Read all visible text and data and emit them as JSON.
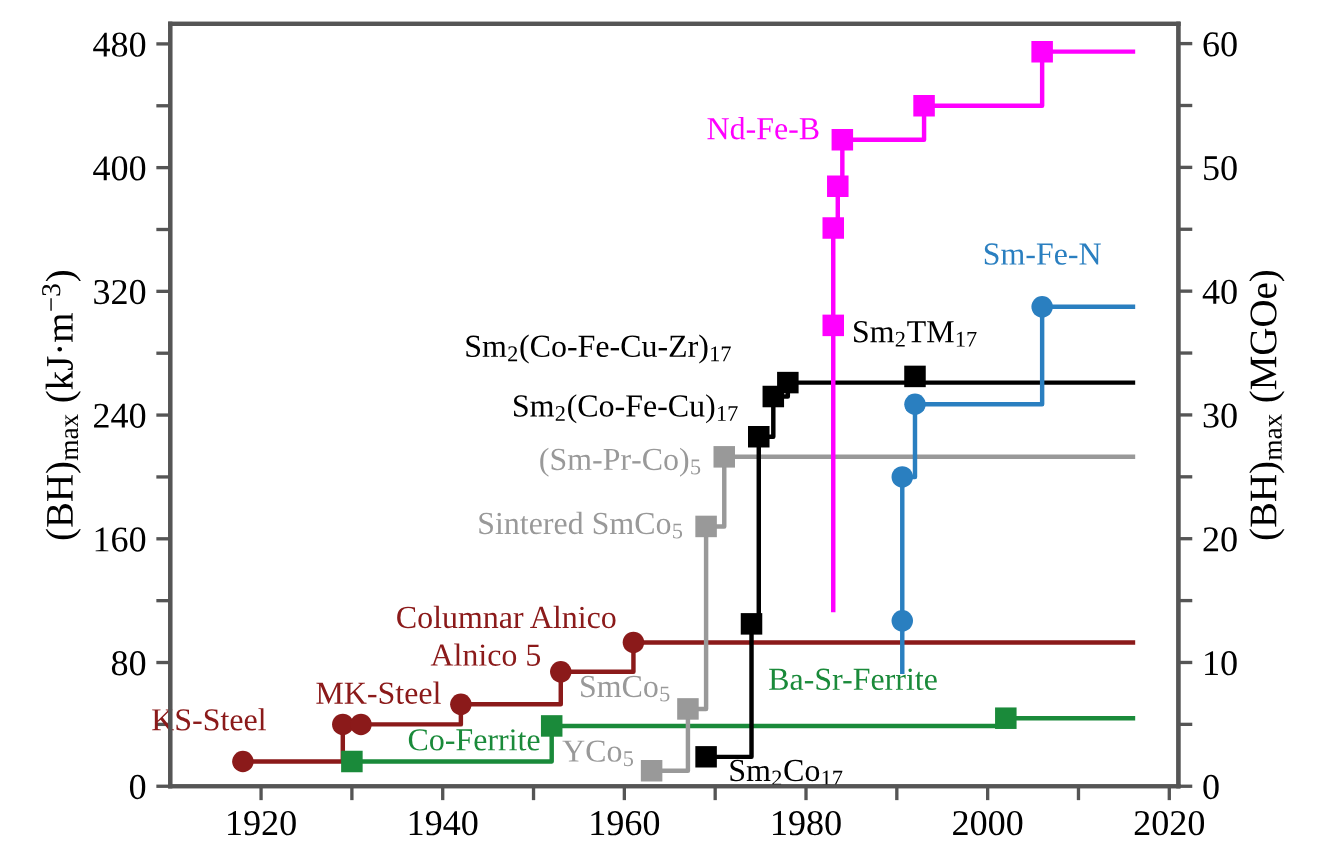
{
  "chart_data": {
    "type": "step",
    "xlim": [
      1910,
      2021
    ],
    "xticks": [
      1920,
      {
        "value": 1930,
        "label": null
      },
      1940,
      {
        "value": 1950,
        "label": null
      },
      1960,
      {
        "value": 1970,
        "label": null
      },
      1980,
      {
        "value": 1990,
        "label": null
      },
      2000,
      {
        "value": 2010,
        "label": null
      },
      2020
    ],
    "ylim": [
      0,
      493
    ],
    "yticks": [
      0,
      {
        "value": 40,
        "label": null
      },
      80,
      {
        "value": 120,
        "label": null
      },
      160,
      {
        "value": 200,
        "label": null
      },
      240,
      {
        "value": 280,
        "label": null
      },
      320,
      {
        "value": 360,
        "label": null
      },
      400,
      {
        "value": 440,
        "label": null
      },
      480
    ],
    "y2lim": [
      0,
      61.6
    ],
    "y2ticks": [
      0,
      {
        "value": 5,
        "label": null
      },
      10,
      {
        "value": 15,
        "label": null
      },
      20,
      {
        "value": 25,
        "label": null
      },
      30,
      {
        "value": 35,
        "label": null
      },
      40,
      {
        "value": 45,
        "label": null
      },
      50,
      {
        "value": 55,
        "label": null
      },
      60
    ],
    "ylabel": "(BH)$_{max}$ (kJ·m$^{−3}$)",
    "y2label": "(BH)$_{max}$ (MGOe)",
    "grid": false,
    "legend": false,
    "line_style": "solid",
    "series": [
      {
        "marker": "none",
        "color": "#8b1a1a",
        "x": [
          1918,
          1929,
          1931,
          1942,
          1953,
          1961,
          2016
        ],
        "values": [
          16,
          40,
          40,
          53,
          74,
          93,
          93
        ]
      },
      {
        "marker": "none",
        "color": "#1a8a3a",
        "x": [
          1930,
          1952,
          2002,
          2016
        ],
        "values": [
          16,
          39,
          44,
          44
        ]
      },
      {
        "marker": "none",
        "color": "#999999",
        "x": [
          1963,
          1967,
          1969,
          1971,
          2016
        ],
        "values": [
          10,
          50,
          168,
          213,
          213
        ]
      },
      {
        "marker": "none",
        "color": "#000000",
        "x": [
          1969,
          1974,
          1974.8,
          1976.4,
          1978,
          2016
        ],
        "values": [
          19,
          105,
          226,
          252,
          261,
          261
        ]
      },
      {
        "marker": "none",
        "color": "#ff00ff",
        "x": [
          1983,
          1983,
          1983,
          1983.5,
          1984,
          1993,
          2006,
          2016
        ],
        "values": [
          114,
          298,
          361,
          388,
          418,
          440,
          475,
          475
        ]
      },
      {
        "marker": "none",
        "color": "#2a7fc0",
        "x": [
          1990.6,
          1990.6,
          1990.6,
          1992,
          2006,
          2016
        ],
        "values": [
          74,
          107,
          200,
          247,
          310,
          310
        ]
      },
      {
        "type": "scatter",
        "marker": "circle",
        "color": "#8b1a1a",
        "x": [
          1918,
          1929,
          1931,
          1942,
          1953,
          1961
        ],
        "values": [
          16,
          40,
          40,
          53,
          74,
          93
        ]
      },
      {
        "type": "scatter",
        "marker": "square",
        "color": "#1a8a3a",
        "x": [
          1930,
          1952,
          2002
        ],
        "values": [
          16,
          39,
          44
        ]
      },
      {
        "type": "scatter",
        "marker": "square",
        "color": "#999999",
        "x": [
          1963,
          1967,
          1969,
          1971
        ],
        "values": [
          10,
          50,
          168,
          213
        ]
      },
      {
        "type": "scatter",
        "marker": "square",
        "color": "#000000",
        "x": [
          1969,
          1974,
          1974.8,
          1976.4,
          1978,
          1992
        ],
        "values": [
          19,
          105,
          226,
          252,
          261,
          265
        ]
      },
      {
        "type": "scatter",
        "marker": "square",
        "color": "#ff00ff",
        "x": [
          1983,
          1983,
          1983.5,
          1984,
          1993,
          2006
        ],
        "values": [
          298,
          361,
          388,
          418,
          440,
          475
        ]
      },
      {
        "type": "scatter",
        "marker": "circle",
        "color": "#2a7fc0",
        "x": [
          1990.6,
          1990.6,
          1992,
          2006
        ],
        "values": [
          107,
          200,
          247,
          310
        ]
      }
    ],
    "annotations": [
      {
        "text": "KS-Steel",
        "x": 1918,
        "y": 16
      },
      {
        "text": "MK-Steel",
        "x": 1942,
        "y": 53
      },
      {
        "text": "Alnico 5",
        "x": 1953,
        "y": 74
      },
      {
        "text": "Columnar Alnico",
        "x": 1961,
        "y": 93
      },
      {
        "text": "Co-Ferrite",
        "x": 1952,
        "y": 39
      },
      {
        "text": "SmCo$_{5}$",
        "x": 1967,
        "y": 50
      },
      {
        "text": "YCo$_{5}$",
        "x": 1963,
        "y": 10
      },
      {
        "text": "Sm$_{2}$Co$_{17}$",
        "x": 1969,
        "y": 19
      },
      {
        "text": "Sintered SmCo$_{5}$",
        "x": 1969,
        "y": 168
      },
      {
        "text": "(Sm-Pr-Co)$_{5}$",
        "x": 1971,
        "y": 213
      },
      {
        "text": "Sm$_{2}$(Co-Fe-Cu)$_{17}$",
        "x": 1974.8,
        "y": 226
      },
      {
        "text": "Sm$_{2}$(Co-Fe-Cu-Zr)$_{17}$",
        "x": 1978,
        "y": 261
      },
      {
        "text": "Sm$_{2}$TM$_{17}$",
        "x": 1992,
        "y": 265
      },
      {
        "text": "Nd-Fe-B",
        "x": 1984,
        "y": 418
      },
      {
        "text": "Sm-Fe-N",
        "x": 2006,
        "y": 310
      },
      {
        "text": "Ba-Sr-Ferrite",
        "x": 2002,
        "y": 44
      }
    ]
  }
}
